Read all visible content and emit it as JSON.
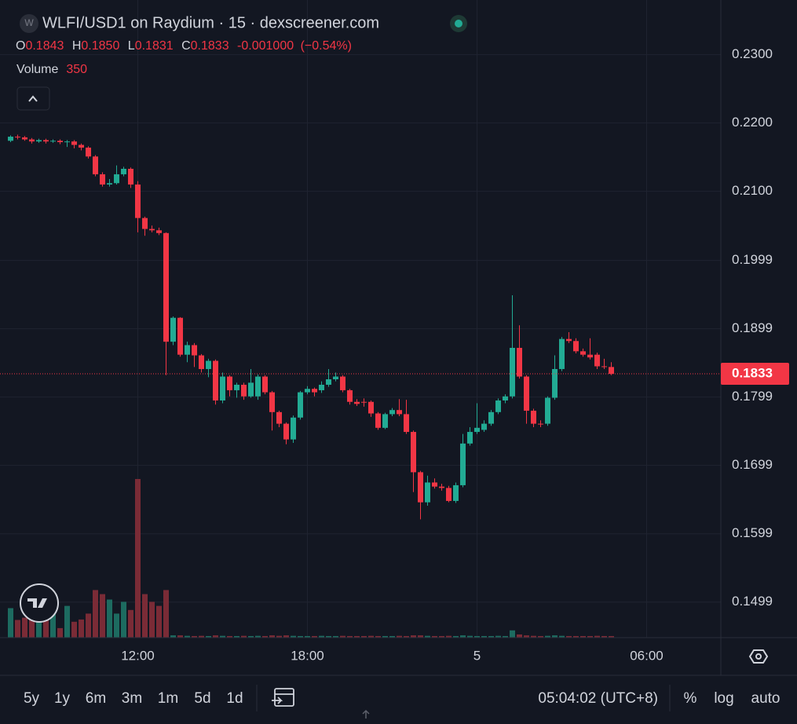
{
  "chart_data": {
    "type": "candlestick",
    "title": "WLFI/USD1 on Raydium · 15 · dexscreener.com",
    "icon_letter": "W",
    "legend": {
      "o": "O",
      "h": "H",
      "l": "L",
      "c": "C",
      "change": "-0.001000",
      "change_pct": "(−0.54%)",
      "volume": "Volume"
    },
    "last_labels": {
      "open": "0.1843",
      "high": "0.1850",
      "low": "0.1831",
      "close": "0.1833"
    },
    "up_color": "#22ab94",
    "down_color": "#f23645",
    "volume_up_color": "#1d6b60",
    "volume_down_color": "#7a2b36",
    "log_scale": false,
    "grid": true,
    "ylim": [
      0.1447,
      0.238
    ],
    "yticks": [
      0.1499,
      0.1599,
      0.1699,
      0.1799,
      0.1899,
      0.1999,
      {
        "value": 0.21,
        "label": "0.2100"
      },
      {
        "value": 0.22,
        "label": "0.2200"
      },
      {
        "value": 0.23,
        "label": "0.2300"
      }
    ],
    "xlim": [
      -1.5,
      100.5
    ],
    "xticks": [
      {
        "value": 18,
        "label": "12:00"
      },
      {
        "value": 42,
        "label": "18:00"
      },
      {
        "value": 66,
        "label": "5"
      },
      {
        "value": 90,
        "label": "06:00"
      }
    ],
    "open": [
      0.2174,
      0.218,
      0.2179,
      0.2176,
      0.2173,
      0.2175,
      0.2173,
      0.2174,
      0.2172,
      0.2173,
      0.2168,
      0.2164,
      0.2151,
      0.2125,
      0.211,
      0.2112,
      0.2125,
      0.2133,
      0.211,
      0.2061,
      0.2045,
      0.2043,
      0.2039,
      0.188,
      0.1915,
      0.1861,
      0.1875,
      0.186,
      0.184,
      0.1852,
      0.1794,
      0.1829,
      0.1809,
      0.1817,
      0.18,
      0.18,
      0.1829,
      0.1806,
      0.1777,
      0.176,
      0.1737,
      0.1769,
      0.1806,
      0.1811,
      0.1809,
      0.1817,
      0.1825,
      0.1829,
      0.1809,
      0.1792,
      0.1792,
      0.1792,
      0.1775,
      0.1754,
      0.1774,
      0.178,
      0.1774,
      0.1748,
      0.1689,
      0.1645,
      0.1674,
      0.1668,
      0.1666,
      0.1647,
      0.167,
      0.1731,
      0.1748,
      0.1751,
      0.176,
      0.1777,
      0.1794,
      0.18,
      0.1871,
      0.1829,
      0.1779,
      0.176,
      0.176,
      0.1798,
      0.184,
      0.1884,
      0.1881,
      0.1866,
      0.1861,
      0.1861,
      0.1844,
      0.1843
    ],
    "high": [
      0.2182,
      0.2183,
      0.2181,
      0.2178,
      0.2177,
      0.2177,
      0.2176,
      0.2176,
      0.2175,
      0.2175,
      0.217,
      0.2166,
      0.2153,
      0.2128,
      0.2118,
      0.2138,
      0.2136,
      0.2135,
      0.2115,
      0.2063,
      0.205,
      0.2047,
      0.204,
      0.1917,
      0.1916,
      0.188,
      0.1878,
      0.1862,
      0.1855,
      0.1854,
      0.1835,
      0.1831,
      0.182,
      0.182,
      0.184,
      0.1832,
      0.1831,
      0.1808,
      0.1779,
      0.1762,
      0.1772,
      0.1808,
      0.1815,
      0.1813,
      0.1822,
      0.184,
      0.1835,
      0.1831,
      0.1811,
      0.1796,
      0.1797,
      0.1794,
      0.1777,
      0.1776,
      0.1783,
      0.1796,
      0.1795,
      0.175,
      0.1691,
      0.1684,
      0.168,
      0.1672,
      0.1669,
      0.1674,
      0.1745,
      0.1755,
      0.179,
      0.1765,
      0.178,
      0.1797,
      0.1803,
      0.1948,
      0.1904,
      0.1831,
      0.1782,
      0.1765,
      0.18,
      0.186,
      0.1887,
      0.1894,
      0.1885,
      0.187,
      0.1885,
      0.1864,
      0.1855,
      0.185
    ],
    "low": [
      0.2172,
      0.2176,
      0.2174,
      0.217,
      0.2171,
      0.217,
      0.2171,
      0.2169,
      0.2165,
      0.2163,
      0.216,
      0.2148,
      0.2122,
      0.2107,
      0.2107,
      0.211,
      0.2122,
      0.2105,
      0.204,
      0.2035,
      0.204,
      0.2036,
      0.1831,
      0.1875,
      0.1858,
      0.185,
      0.1843,
      0.1835,
      0.1828,
      0.1788,
      0.179,
      0.18,
      0.1798,
      0.1795,
      0.1798,
      0.1795,
      0.1803,
      0.175,
      0.1755,
      0.173,
      0.1732,
      0.1766,
      0.1803,
      0.18,
      0.1805,
      0.1814,
      0.1822,
      0.1806,
      0.1788,
      0.1786,
      0.1785,
      0.177,
      0.1751,
      0.1752,
      0.1771,
      0.1771,
      0.1745,
      0.166,
      0.162,
      0.164,
      0.1665,
      0.1662,
      0.1645,
      0.1644,
      0.1667,
      0.1728,
      0.1745,
      0.1748,
      0.1757,
      0.1774,
      0.179,
      0.1797,
      0.1826,
      0.176,
      0.1755,
      0.1755,
      0.1757,
      0.1795,
      0.1837,
      0.1878,
      0.1863,
      0.1858,
      0.1854,
      0.184,
      0.184,
      0.1831
    ],
    "close": [
      0.218,
      0.2179,
      0.2176,
      0.2173,
      0.2175,
      0.2173,
      0.2174,
      0.2172,
      0.2173,
      0.2168,
      0.2164,
      0.2151,
      0.2125,
      0.211,
      0.2112,
      0.2125,
      0.2133,
      0.211,
      0.2061,
      0.2045,
      0.2043,
      0.2039,
      0.188,
      0.1915,
      0.1861,
      0.1875,
      0.186,
      0.184,
      0.1852,
      0.1794,
      0.1829,
      0.1809,
      0.1817,
      0.18,
      0.182,
      0.1829,
      0.1806,
      0.1777,
      0.176,
      0.1737,
      0.1769,
      0.1806,
      0.1811,
      0.1806,
      0.1817,
      0.1825,
      0.1829,
      0.1809,
      0.1792,
      0.1789,
      0.1791,
      0.1775,
      0.1754,
      0.1774,
      0.178,
      0.1774,
      0.1748,
      0.1689,
      0.1645,
      0.1674,
      0.1668,
      0.1666,
      0.1647,
      0.167,
      0.1731,
      0.1748,
      0.1754,
      0.176,
      0.1777,
      0.1794,
      0.18,
      0.1871,
      0.1829,
      0.1779,
      0.176,
      0.1759,
      0.1798,
      0.184,
      0.1884,
      0.1881,
      0.1866,
      0.1861,
      0.1857,
      0.1844,
      0.1843,
      0.1833
    ],
    "volume": [
      6500,
      3900,
      4400,
      5300,
      6100,
      6700,
      5300,
      2100,
      7000,
      3500,
      4000,
      5300,
      10500,
      9600,
      8400,
      5300,
      7900,
      6100,
      35000,
      9600,
      7900,
      7000,
      10500,
      500,
      500,
      400,
      350,
      400,
      350,
      500,
      400,
      350,
      350,
      400,
      350,
      400,
      350,
      500,
      400,
      500,
      400,
      350,
      350,
      350,
      400,
      350,
      350,
      400,
      350,
      350,
      350,
      400,
      350,
      350,
      350,
      400,
      350,
      500,
      500,
      400,
      350,
      350,
      400,
      350,
      500,
      400,
      350,
      350,
      350,
      400,
      350,
      1600,
      700,
      500,
      400,
      350,
      400,
      500,
      400,
      350,
      350,
      350,
      350,
      400,
      350,
      350
    ]
  },
  "toolbar": {
    "ranges": [
      "5y",
      "1y",
      "6m",
      "3m",
      "1m",
      "5d",
      "1d"
    ],
    "clock": "05:04:02 (UTC+8)",
    "percent": "%",
    "log": "log",
    "auto": "auto"
  }
}
